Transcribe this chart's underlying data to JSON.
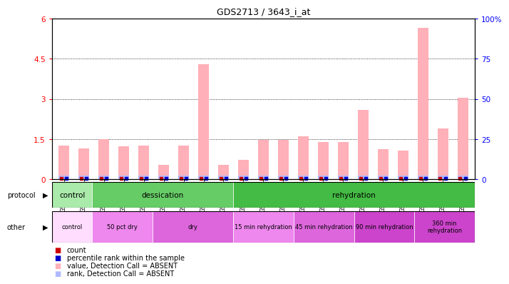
{
  "title": "GDS2713 / 3643_i_at",
  "samples": [
    "GSM21661",
    "GSM21662",
    "GSM21663",
    "GSM21664",
    "GSM21665",
    "GSM21666",
    "GSM21667",
    "GSM21668",
    "GSM21669",
    "GSM21670",
    "GSM21671",
    "GSM21672",
    "GSM21673",
    "GSM21674",
    "GSM21675",
    "GSM21676",
    "GSM21677",
    "GSM21678",
    "GSM21679",
    "GSM21680",
    "GSM21681"
  ],
  "values": [
    1.25,
    1.15,
    1.5,
    1.22,
    1.25,
    0.52,
    1.25,
    4.3,
    0.52,
    0.72,
    1.48,
    1.48,
    1.6,
    1.38,
    1.38,
    2.6,
    1.12,
    1.08,
    5.65,
    1.9,
    3.05
  ],
  "ranks": [
    0.12,
    0.12,
    0.12,
    0.12,
    0.12,
    0.12,
    0.12,
    0.12,
    0.12,
    0.12,
    0.12,
    0.12,
    0.12,
    0.12,
    0.12,
    0.12,
    0.12,
    0.12,
    0.12,
    0.12,
    0.12
  ],
  "value_color": "#ffb0b8",
  "rank_color": "#b0b8ff",
  "count_color": "#cc0000",
  "percentile_color": "#0000cc",
  "ylim_left": [
    0,
    6
  ],
  "ylim_right": [
    0,
    100
  ],
  "yticks_left": [
    0,
    1.5,
    3.0,
    4.5,
    6.0
  ],
  "yticks_right": [
    0,
    25,
    50,
    75,
    100
  ],
  "ytick_labels_left": [
    "0",
    "1.5",
    "3",
    "4.5",
    "6"
  ],
  "ytick_labels_right": [
    "0",
    "25",
    "50",
    "75",
    "100%"
  ],
  "protocol_groups": [
    {
      "label": "control",
      "start": 0,
      "end": 2,
      "color": "#aaeaaa"
    },
    {
      "label": "dessication",
      "start": 2,
      "end": 9,
      "color": "#66cc66"
    },
    {
      "label": "rehydration",
      "start": 9,
      "end": 21,
      "color": "#44bb44"
    }
  ],
  "other_groups": [
    {
      "label": "control",
      "start": 0,
      "end": 2,
      "color": "#ffddff"
    },
    {
      "label": "50 pct dry",
      "start": 2,
      "end": 5,
      "color": "#ee88ee"
    },
    {
      "label": "dry",
      "start": 5,
      "end": 9,
      "color": "#dd66dd"
    },
    {
      "label": "15 min rehydration",
      "start": 9,
      "end": 12,
      "color": "#ee88ee"
    },
    {
      "label": "45 min rehydration",
      "start": 12,
      "end": 15,
      "color": "#dd66dd"
    },
    {
      "label": "90 min rehydration",
      "start": 15,
      "end": 18,
      "color": "#cc44cc"
    },
    {
      "label": "360 min\nrehydration",
      "start": 18,
      "end": 21,
      "color": "#cc44cc"
    }
  ],
  "protocol_label": "protocol",
  "other_label": "other",
  "legend_items": [
    {
      "color": "#cc0000",
      "label": "count"
    },
    {
      "color": "#0000cc",
      "label": "percentile rank within the sample"
    },
    {
      "color": "#ffb0b8",
      "label": "value, Detection Call = ABSENT"
    },
    {
      "color": "#b0b8ff",
      "label": "rank, Detection Call = ABSENT"
    }
  ],
  "bar_width": 0.55,
  "bg_color": "#ffffff",
  "xticklabel_fontsize": 5.5,
  "title_fontsize": 9,
  "dotted_lines": [
    1.5,
    3.0,
    4.5
  ]
}
